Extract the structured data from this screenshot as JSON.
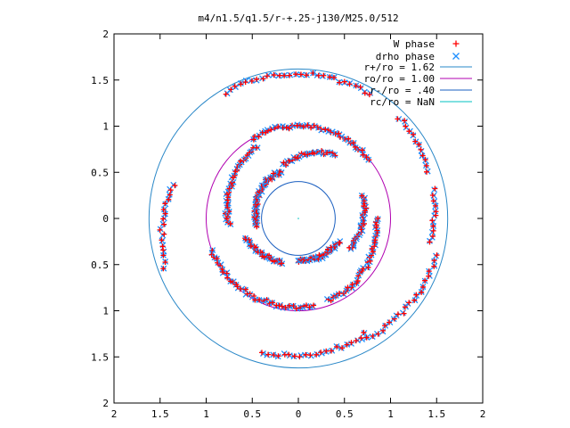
{
  "chart_data": {
    "type": "scatter",
    "title": "m4/n1.5/q1.5/r-+.25-j130/M25.0/512",
    "xlim": [
      -2,
      2
    ],
    "ylim": [
      -2,
      2
    ],
    "x_ticks": [
      "2",
      "1.5",
      "1",
      "0.5",
      "0",
      "0.5",
      "1",
      "1.5",
      "2"
    ],
    "y_ticks": [
      "2",
      "1.5",
      "1",
      "0.5",
      "0",
      "0.5",
      "1",
      "1.5",
      "2"
    ],
    "legend_position": "top-right",
    "circles": [
      {
        "label": "r+/ro = 1.62",
        "radius": 1.62,
        "color": "#2a88c8"
      },
      {
        "label": "ro/ro = 1.00",
        "radius": 1.0,
        "color": "#b000b0"
      },
      {
        "label": "r-/ro = .40",
        "radius": 0.4,
        "color": "#1a5fc0"
      },
      {
        "label": "rc/ro = NaN",
        "radius": null,
        "color": "#00c0c0"
      }
    ],
    "series": [
      {
        "name": "W phase",
        "marker": "+",
        "color": "#ff0000"
      },
      {
        "name": "drho phase",
        "marker": "x",
        "color": "#1e8fff"
      }
    ],
    "phase_arcs": [
      {
        "r0": 1.58,
        "r1": 1.55,
        "theta0": 120,
        "theta1": 60
      },
      {
        "r0": 1.55,
        "r1": 1.5,
        "theta0": 45,
        "theta1": 20
      },
      {
        "r0": 1.55,
        "r1": 1.4,
        "theta0": 200,
        "theta1": 165
      },
      {
        "r0": 1.5,
        "r1": 1.45,
        "theta0": 255,
        "theta1": 300
      },
      {
        "r0": 1.5,
        "r1": 1.55,
        "theta0": 300,
        "theta1": 345
      },
      {
        "r0": 1.0,
        "r1": 1.0,
        "theta0": 40,
        "theta1": 120
      },
      {
        "r0": 0.9,
        "r1": 0.75,
        "theta0": 120,
        "theta1": 185
      },
      {
        "r0": 1.0,
        "r1": 0.95,
        "theta0": 200,
        "theta1": 280
      },
      {
        "r0": 0.95,
        "r1": 0.85,
        "theta0": 290,
        "theta1": 360
      },
      {
        "r0": 0.8,
        "r1": 0.6,
        "theta0": 60,
        "theta1": 105
      },
      {
        "r0": 0.55,
        "r1": 0.45,
        "theta0": 110,
        "theta1": 190
      },
      {
        "r0": 0.6,
        "r1": 0.5,
        "theta0": 200,
        "theta1": 250
      },
      {
        "r0": 0.45,
        "r1": 0.5,
        "theta0": 270,
        "theta1": 330
      },
      {
        "r0": 0.65,
        "r1": 0.75,
        "theta0": 330,
        "theta1": 380
      },
      {
        "r0": 1.5,
        "r1": 1.45,
        "theta0": 12,
        "theta1": -10
      }
    ]
  }
}
